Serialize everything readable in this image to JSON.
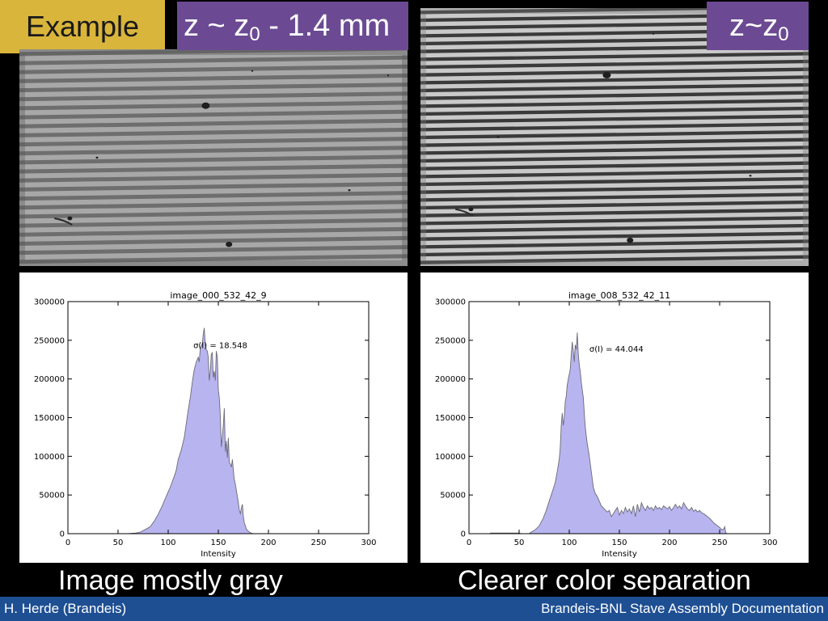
{
  "labels": {
    "example": "Example",
    "left_z": "z ~ z",
    "left_z_sub": "0",
    "left_offset": " - 1.4 mm",
    "right_z": "z~z",
    "right_z_sub": "0"
  },
  "captions": {
    "left": "Image mostly gray",
    "right": "Clearer color separation"
  },
  "footer": {
    "author": "H. Herde (Brandeis)",
    "project": "Brandeis-BNL Stave Assembly Documentation"
  },
  "photos": [
    {
      "name": "left-fringe-photo",
      "stripe_count": 24,
      "contrast": "low"
    },
    {
      "name": "right-fringe-photo",
      "stripe_count": 33,
      "contrast": "high"
    }
  ],
  "colors": {
    "fill": "#b8b4ef",
    "line": "#6b6b75",
    "example_tag": "#d9b53c",
    "purple_tag": "#6b4a93",
    "footer_bar": "#1e4f93"
  },
  "chart_data": [
    {
      "type": "area",
      "title": "image_000_532_42_9",
      "xlabel": "Intensity",
      "ylabel": "",
      "xlim": [
        0,
        300
      ],
      "ylim": [
        0,
        300000
      ],
      "xticks": [
        0,
        50,
        100,
        150,
        200,
        250,
        300
      ],
      "yticks": [
        0,
        50000,
        100000,
        150000,
        200000,
        250000,
        300000
      ],
      "annotation": "σ(I) = 18.548",
      "annotation_at": [
        152,
        240000
      ],
      "grid": false,
      "series": [
        {
          "points": [
            [
              0,
              0
            ],
            [
              60,
              0
            ],
            [
              68,
              800
            ],
            [
              72,
              2000
            ],
            [
              78,
              6000
            ],
            [
              82,
              9000
            ],
            [
              86,
              16000
            ],
            [
              90,
              25000
            ],
            [
              94,
              36000
            ],
            [
              98,
              48000
            ],
            [
              102,
              60000
            ],
            [
              106,
              74000
            ],
            [
              108,
              82000
            ],
            [
              110,
              96000
            ],
            [
              113,
              108000
            ],
            [
              116,
              124000
            ],
            [
              118,
              142000
            ],
            [
              120,
              160000
            ],
            [
              122,
              176000
            ],
            [
              124,
              196000
            ],
            [
              126,
              212000
            ],
            [
              128,
              222000
            ],
            [
              130,
              228000
            ],
            [
              131,
              222000
            ],
            [
              132,
              240000
            ],
            [
              134,
              246000
            ],
            [
              135,
              258000
            ],
            [
              136,
              266000
            ],
            [
              137,
              245000
            ],
            [
              138,
              238000
            ],
            [
              139,
              236000
            ],
            [
              140,
              228000
            ],
            [
              141,
              198000
            ],
            [
              142,
              210000
            ],
            [
              143,
              232000
            ],
            [
              144,
              234000
            ],
            [
              145,
              202000
            ],
            [
              146,
              210000
            ],
            [
              147,
              198000
            ],
            [
              148,
              236000
            ],
            [
              149,
              228000
            ],
            [
              150,
              186000
            ],
            [
              151,
              176000
            ],
            [
              152,
              152000
            ],
            [
              153,
              112000
            ],
            [
              154,
              126000
            ],
            [
              155,
              140000
            ],
            [
              156,
              162000
            ],
            [
              157,
              106000
            ],
            [
              158,
              120000
            ],
            [
              159,
              98000
            ],
            [
              160,
              124000
            ],
            [
              161,
              92000
            ],
            [
              162,
              90000
            ],
            [
              163,
              86000
            ],
            [
              164,
              96000
            ],
            [
              165,
              82000
            ],
            [
              166,
              70000
            ],
            [
              167,
              64000
            ],
            [
              168,
              56000
            ],
            [
              169,
              48000
            ],
            [
              170,
              40000
            ],
            [
              171,
              30000
            ],
            [
              172,
              26000
            ],
            [
              173,
              33000
            ],
            [
              174,
              38000
            ],
            [
              175,
              22000
            ],
            [
              176,
              14000
            ],
            [
              177,
              10000
            ],
            [
              178,
              6000
            ],
            [
              180,
              3000
            ],
            [
              182,
              1200
            ],
            [
              185,
              0
            ],
            [
              300,
              0
            ]
          ]
        }
      ]
    },
    {
      "type": "area",
      "title": "image_008_532_42_11",
      "xlabel": "Intensity",
      "ylabel": "",
      "xlim": [
        0,
        300
      ],
      "ylim": [
        0,
        300000
      ],
      "xticks": [
        0,
        50,
        100,
        150,
        200,
        250,
        300
      ],
      "yticks": [
        0,
        50000,
        100000,
        150000,
        200000,
        250000,
        300000
      ],
      "annotation": "σ(I) = 44.044",
      "annotation_at": [
        147,
        235000
      ],
      "grid": false,
      "series": [
        {
          "points": [
            [
              0,
              0
            ],
            [
              20,
              0
            ],
            [
              22,
              800
            ],
            [
              50,
              800
            ],
            [
              52,
              0
            ],
            [
              60,
              0
            ],
            [
              62,
              2000
            ],
            [
              66,
              5000
            ],
            [
              70,
              10000
            ],
            [
              74,
              20000
            ],
            [
              77,
              30000
            ],
            [
              80,
              42000
            ],
            [
              82,
              50000
            ],
            [
              84,
              58000
            ],
            [
              86,
              66000
            ],
            [
              88,
              80000
            ],
            [
              90,
              96000
            ],
            [
              91,
              110000
            ],
            [
              92,
              140000
            ],
            [
              93,
              156000
            ],
            [
              94,
              140000
            ],
            [
              95,
              150000
            ],
            [
              96,
              170000
            ],
            [
              97,
              178000
            ],
            [
              98,
              192000
            ],
            [
              99,
              200000
            ],
            [
              100,
              206000
            ],
            [
              101,
              212000
            ],
            [
              102,
              232000
            ],
            [
              103,
              248000
            ],
            [
              104,
              236000
            ],
            [
              105,
              222000
            ],
            [
              106,
              244000
            ],
            [
              107,
              238000
            ],
            [
              108,
              260000
            ],
            [
              109,
              232000
            ],
            [
              110,
              218000
            ],
            [
              111,
              210000
            ],
            [
              112,
              196000
            ],
            [
              113,
              186000
            ],
            [
              114,
              176000
            ],
            [
              115,
              156000
            ],
            [
              116,
              138000
            ],
            [
              118,
              116000
            ],
            [
              120,
              100000
            ],
            [
              122,
              80000
            ],
            [
              124,
              60000
            ],
            [
              126,
              52000
            ],
            [
              128,
              48000
            ],
            [
              130,
              42000
            ],
            [
              132,
              36000
            ],
            [
              135,
              32000
            ],
            [
              138,
              28000
            ],
            [
              140,
              30000
            ],
            [
              142,
              22000
            ],
            [
              144,
              26000
            ],
            [
              146,
              30000
            ],
            [
              148,
              34000
            ],
            [
              150,
              24000
            ],
            [
              152,
              30000
            ],
            [
              154,
              26000
            ],
            [
              156,
              34000
            ],
            [
              158,
              28000
            ],
            [
              160,
              32000
            ],
            [
              162,
              26000
            ],
            [
              164,
              36000
            ],
            [
              166,
              22000
            ],
            [
              168,
              38000
            ],
            [
              170,
              28000
            ],
            [
              172,
              40000
            ],
            [
              174,
              34000
            ],
            [
              176,
              30000
            ],
            [
              178,
              36000
            ],
            [
              180,
              32000
            ],
            [
              182,
              34000
            ],
            [
              184,
              30000
            ],
            [
              186,
              36000
            ],
            [
              188,
              32000
            ],
            [
              190,
              34000
            ],
            [
              192,
              31000
            ],
            [
              194,
              36000
            ],
            [
              196,
              34000
            ],
            [
              198,
              32000
            ],
            [
              200,
              35000
            ],
            [
              202,
              30000
            ],
            [
              204,
              34000
            ],
            [
              206,
              38000
            ],
            [
              208,
              33000
            ],
            [
              210,
              36000
            ],
            [
              212,
              32000
            ],
            [
              214,
              40000
            ],
            [
              216,
              36000
            ],
            [
              218,
              32000
            ],
            [
              220,
              30000
            ],
            [
              222,
              34000
            ],
            [
              224,
              29000
            ],
            [
              226,
              31000
            ],
            [
              228,
              28000
            ],
            [
              230,
              30000
            ],
            [
              232,
              27000
            ],
            [
              234,
              26000
            ],
            [
              236,
              24000
            ],
            [
              238,
              22000
            ],
            [
              240,
              20000
            ],
            [
              242,
              17000
            ],
            [
              244,
              14000
            ],
            [
              246,
              12000
            ],
            [
              248,
              10000
            ],
            [
              250,
              8000
            ],
            [
              252,
              5000
            ],
            [
              254,
              6000
            ],
            [
              255,
              9000
            ],
            [
              256,
              2000
            ],
            [
              257,
              0
            ],
            [
              300,
              0
            ]
          ]
        }
      ]
    }
  ]
}
